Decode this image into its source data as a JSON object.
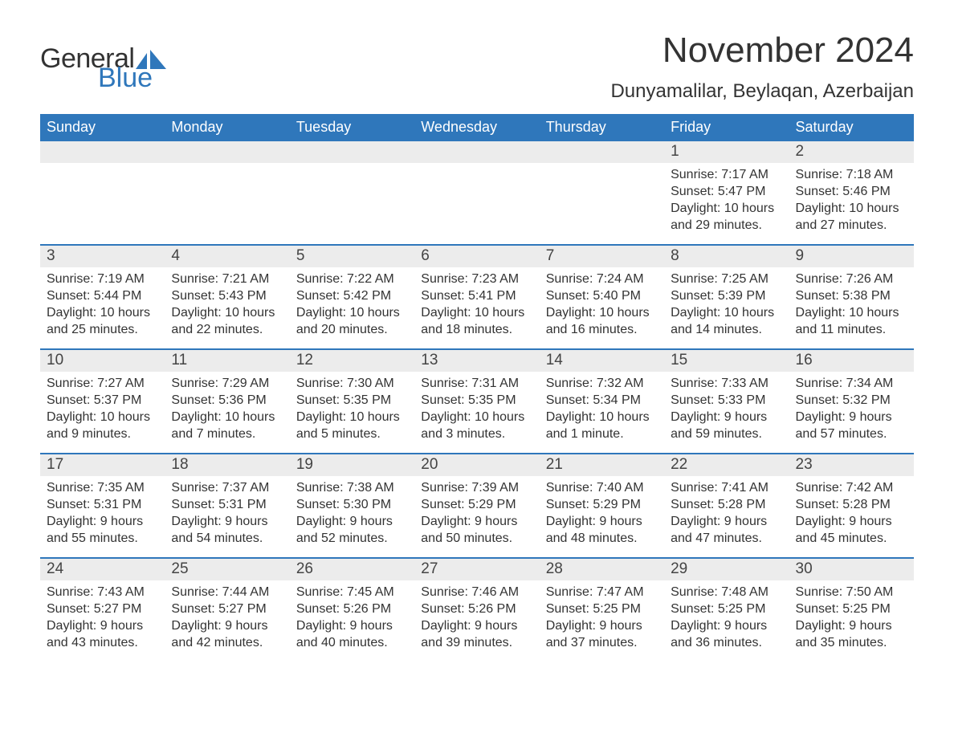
{
  "brand": {
    "word1": "General",
    "word2": "Blue",
    "text_color": "#333333",
    "accent_color": "#2f77bb"
  },
  "header": {
    "month_title": "November 2024",
    "location": "Dunyamalilar, Beylaqan, Azerbaijan",
    "title_fontsize_pt": 33,
    "location_fontsize_pt": 18,
    "title_color": "#333333"
  },
  "calendar": {
    "type": "table",
    "header_bg": "#2f77bb",
    "header_fg": "#ffffff",
    "daynum_bg": "#ececec",
    "row_divider_color": "#2f77bb",
    "body_text_color": "#333333",
    "body_fontsize_pt": 12,
    "daynum_fontsize_pt": 14,
    "day_headers": [
      "Sunday",
      "Monday",
      "Tuesday",
      "Wednesday",
      "Thursday",
      "Friday",
      "Saturday"
    ],
    "weeks": [
      [
        {
          "empty": true
        },
        {
          "empty": true
        },
        {
          "empty": true
        },
        {
          "empty": true
        },
        {
          "empty": true
        },
        {
          "day": "1",
          "sunrise": "Sunrise: 7:17 AM",
          "sunset": "Sunset: 5:47 PM",
          "dl1": "Daylight: 10 hours",
          "dl2": "and 29 minutes."
        },
        {
          "day": "2",
          "sunrise": "Sunrise: 7:18 AM",
          "sunset": "Sunset: 5:46 PM",
          "dl1": "Daylight: 10 hours",
          "dl2": "and 27 minutes."
        }
      ],
      [
        {
          "day": "3",
          "sunrise": "Sunrise: 7:19 AM",
          "sunset": "Sunset: 5:44 PM",
          "dl1": "Daylight: 10 hours",
          "dl2": "and 25 minutes."
        },
        {
          "day": "4",
          "sunrise": "Sunrise: 7:21 AM",
          "sunset": "Sunset: 5:43 PM",
          "dl1": "Daylight: 10 hours",
          "dl2": "and 22 minutes."
        },
        {
          "day": "5",
          "sunrise": "Sunrise: 7:22 AM",
          "sunset": "Sunset: 5:42 PM",
          "dl1": "Daylight: 10 hours",
          "dl2": "and 20 minutes."
        },
        {
          "day": "6",
          "sunrise": "Sunrise: 7:23 AM",
          "sunset": "Sunset: 5:41 PM",
          "dl1": "Daylight: 10 hours",
          "dl2": "and 18 minutes."
        },
        {
          "day": "7",
          "sunrise": "Sunrise: 7:24 AM",
          "sunset": "Sunset: 5:40 PM",
          "dl1": "Daylight: 10 hours",
          "dl2": "and 16 minutes."
        },
        {
          "day": "8",
          "sunrise": "Sunrise: 7:25 AM",
          "sunset": "Sunset: 5:39 PM",
          "dl1": "Daylight: 10 hours",
          "dl2": "and 14 minutes."
        },
        {
          "day": "9",
          "sunrise": "Sunrise: 7:26 AM",
          "sunset": "Sunset: 5:38 PM",
          "dl1": "Daylight: 10 hours",
          "dl2": "and 11 minutes."
        }
      ],
      [
        {
          "day": "10",
          "sunrise": "Sunrise: 7:27 AM",
          "sunset": "Sunset: 5:37 PM",
          "dl1": "Daylight: 10 hours",
          "dl2": "and 9 minutes."
        },
        {
          "day": "11",
          "sunrise": "Sunrise: 7:29 AM",
          "sunset": "Sunset: 5:36 PM",
          "dl1": "Daylight: 10 hours",
          "dl2": "and 7 minutes."
        },
        {
          "day": "12",
          "sunrise": "Sunrise: 7:30 AM",
          "sunset": "Sunset: 5:35 PM",
          "dl1": "Daylight: 10 hours",
          "dl2": "and 5 minutes."
        },
        {
          "day": "13",
          "sunrise": "Sunrise: 7:31 AM",
          "sunset": "Sunset: 5:35 PM",
          "dl1": "Daylight: 10 hours",
          "dl2": "and 3 minutes."
        },
        {
          "day": "14",
          "sunrise": "Sunrise: 7:32 AM",
          "sunset": "Sunset: 5:34 PM",
          "dl1": "Daylight: 10 hours",
          "dl2": "and 1 minute."
        },
        {
          "day": "15",
          "sunrise": "Sunrise: 7:33 AM",
          "sunset": "Sunset: 5:33 PM",
          "dl1": "Daylight: 9 hours",
          "dl2": "and 59 minutes."
        },
        {
          "day": "16",
          "sunrise": "Sunrise: 7:34 AM",
          "sunset": "Sunset: 5:32 PM",
          "dl1": "Daylight: 9 hours",
          "dl2": "and 57 minutes."
        }
      ],
      [
        {
          "day": "17",
          "sunrise": "Sunrise: 7:35 AM",
          "sunset": "Sunset: 5:31 PM",
          "dl1": "Daylight: 9 hours",
          "dl2": "and 55 minutes."
        },
        {
          "day": "18",
          "sunrise": "Sunrise: 7:37 AM",
          "sunset": "Sunset: 5:31 PM",
          "dl1": "Daylight: 9 hours",
          "dl2": "and 54 minutes."
        },
        {
          "day": "19",
          "sunrise": "Sunrise: 7:38 AM",
          "sunset": "Sunset: 5:30 PM",
          "dl1": "Daylight: 9 hours",
          "dl2": "and 52 minutes."
        },
        {
          "day": "20",
          "sunrise": "Sunrise: 7:39 AM",
          "sunset": "Sunset: 5:29 PM",
          "dl1": "Daylight: 9 hours",
          "dl2": "and 50 minutes."
        },
        {
          "day": "21",
          "sunrise": "Sunrise: 7:40 AM",
          "sunset": "Sunset: 5:29 PM",
          "dl1": "Daylight: 9 hours",
          "dl2": "and 48 minutes."
        },
        {
          "day": "22",
          "sunrise": "Sunrise: 7:41 AM",
          "sunset": "Sunset: 5:28 PM",
          "dl1": "Daylight: 9 hours",
          "dl2": "and 47 minutes."
        },
        {
          "day": "23",
          "sunrise": "Sunrise: 7:42 AM",
          "sunset": "Sunset: 5:28 PM",
          "dl1": "Daylight: 9 hours",
          "dl2": "and 45 minutes."
        }
      ],
      [
        {
          "day": "24",
          "sunrise": "Sunrise: 7:43 AM",
          "sunset": "Sunset: 5:27 PM",
          "dl1": "Daylight: 9 hours",
          "dl2": "and 43 minutes."
        },
        {
          "day": "25",
          "sunrise": "Sunrise: 7:44 AM",
          "sunset": "Sunset: 5:27 PM",
          "dl1": "Daylight: 9 hours",
          "dl2": "and 42 minutes."
        },
        {
          "day": "26",
          "sunrise": "Sunrise: 7:45 AM",
          "sunset": "Sunset: 5:26 PM",
          "dl1": "Daylight: 9 hours",
          "dl2": "and 40 minutes."
        },
        {
          "day": "27",
          "sunrise": "Sunrise: 7:46 AM",
          "sunset": "Sunset: 5:26 PM",
          "dl1": "Daylight: 9 hours",
          "dl2": "and 39 minutes."
        },
        {
          "day": "28",
          "sunrise": "Sunrise: 7:47 AM",
          "sunset": "Sunset: 5:25 PM",
          "dl1": "Daylight: 9 hours",
          "dl2": "and 37 minutes."
        },
        {
          "day": "29",
          "sunrise": "Sunrise: 7:48 AM",
          "sunset": "Sunset: 5:25 PM",
          "dl1": "Daylight: 9 hours",
          "dl2": "and 36 minutes."
        },
        {
          "day": "30",
          "sunrise": "Sunrise: 7:50 AM",
          "sunset": "Sunset: 5:25 PM",
          "dl1": "Daylight: 9 hours",
          "dl2": "and 35 minutes."
        }
      ]
    ]
  }
}
